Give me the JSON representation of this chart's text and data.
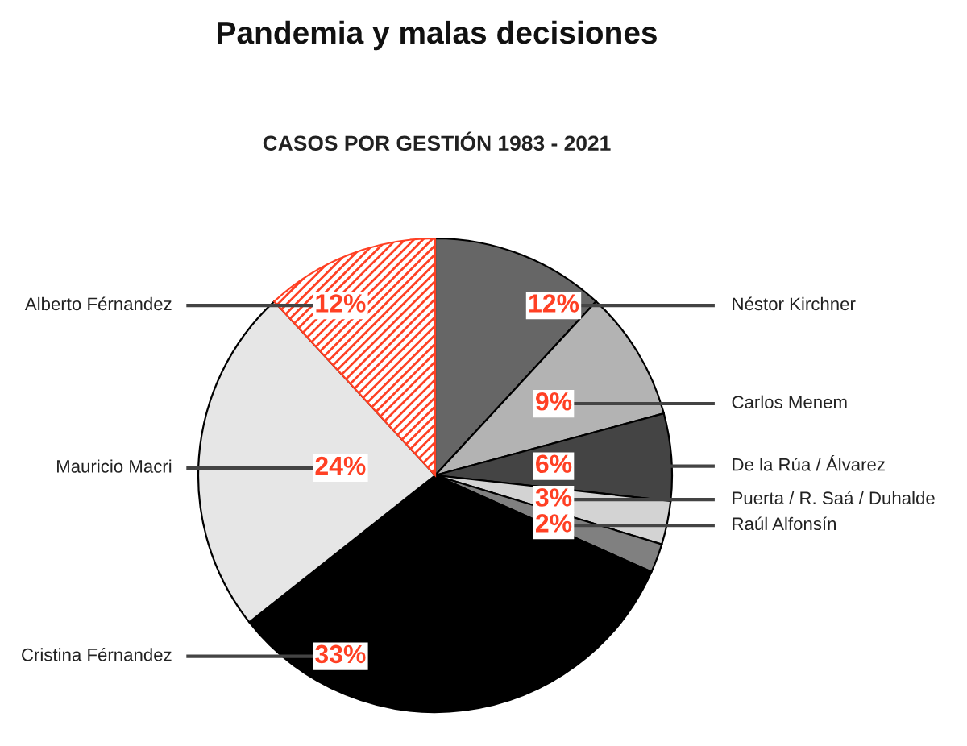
{
  "chart_data": {
    "type": "pie",
    "title": "Pandemia y malas decisiones",
    "subtitle": "CASOS POR GESTIÓN 1983 - 2021",
    "categories": [
      "Néstor Kirchner",
      "Carlos Menem",
      "De la Rúa / Álvarez",
      "Puerta / R. Saá / Duhalde",
      "Raúl Alfonsín",
      "Cristina Férnandez",
      "Mauricio Macri",
      "Alberto Férnandez"
    ],
    "values": [
      12,
      9,
      6,
      3,
      2,
      33,
      24,
      12
    ],
    "value_labels": [
      "12%",
      "9%",
      "6%",
      "3%",
      "2%",
      "33%",
      "24%",
      "12%"
    ],
    "colors": [
      "#666666",
      "#b3b3b3",
      "#444444",
      "#d3d3d3",
      "#808080",
      "#000000",
      "#e6e6e6",
      "#ff4024"
    ]
  }
}
